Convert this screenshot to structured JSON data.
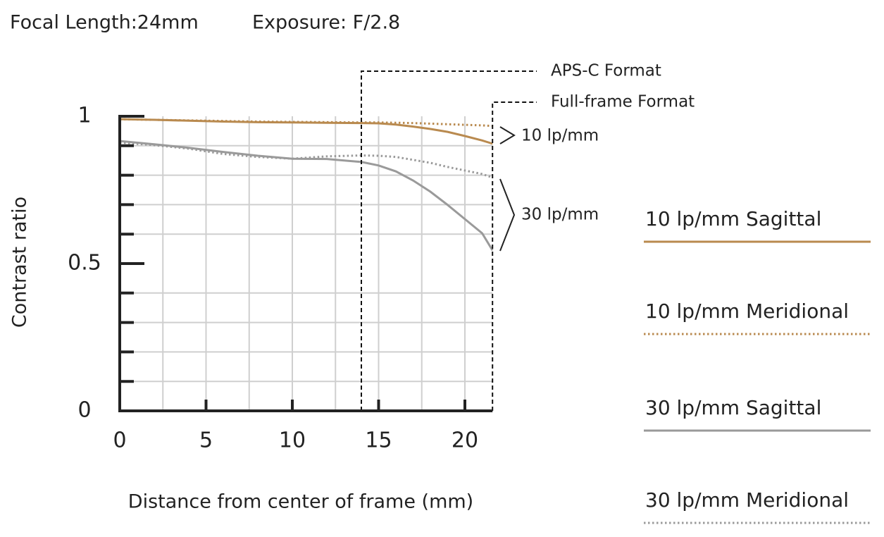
{
  "chart_data": {
    "type": "line",
    "title": "Focal Length:24mm",
    "subtitle": "Exposure: F/2.8",
    "x_label": "Distance from center of frame (mm)",
    "y_label": "Contrast ratio",
    "x": [
      0,
      2,
      4,
      6,
      8,
      10,
      12,
      14,
      15,
      16,
      17,
      18,
      19,
      20,
      21,
      21.6
    ],
    "series": [
      {
        "name": "10 lp/mm Sagittal",
        "color": "#b98a4f",
        "dash": "solid",
        "values": [
          0.99,
          0.988,
          0.985,
          0.982,
          0.98,
          0.979,
          0.978,
          0.977,
          0.976,
          0.972,
          0.965,
          0.957,
          0.947,
          0.933,
          0.918,
          0.907
        ]
      },
      {
        "name": "10 lp/mm Meridional",
        "color": "#b98a4f",
        "dash": "dotted",
        "values": [
          0.99,
          0.988,
          0.986,
          0.984,
          0.982,
          0.981,
          0.98,
          0.979,
          0.979,
          0.978,
          0.977,
          0.975,
          0.973,
          0.971,
          0.969,
          0.967
        ]
      },
      {
        "name": "30 lp/mm Sagittal",
        "color": "#9a9a9a",
        "dash": "solid",
        "values": [
          0.916,
          0.905,
          0.893,
          0.879,
          0.866,
          0.856,
          0.855,
          0.845,
          0.833,
          0.813,
          0.782,
          0.744,
          0.699,
          0.651,
          0.603,
          0.545
        ]
      },
      {
        "name": "30 lp/mm Meridional",
        "color": "#9a9a9a",
        "dash": "dotted",
        "values": [
          0.911,
          0.902,
          0.89,
          0.872,
          0.862,
          0.856,
          0.864,
          0.867,
          0.866,
          0.862,
          0.852,
          0.842,
          0.828,
          0.816,
          0.804,
          0.792
        ]
      }
    ],
    "xlim": [
      0,
      21.6
    ],
    "ylim": [
      0,
      1
    ],
    "xticks": [
      0,
      5,
      10,
      15,
      20
    ],
    "xminor_ticks": [
      2.5,
      7.5,
      12.5,
      17.5
    ],
    "yticks": [
      0,
      0.5,
      1
    ],
    "yminor_ticks": [
      0.1,
      0.2,
      0.3,
      0.4,
      0.6,
      0.7,
      0.8,
      0.9
    ],
    "grid": true,
    "formats": [
      {
        "label": "APS-C Format",
        "x": 14
      },
      {
        "label": "Full-frame Format",
        "x": 21.6
      }
    ],
    "groups": [
      "10 lp/mm",
      "30 lp/mm"
    ],
    "legend": "right"
  }
}
